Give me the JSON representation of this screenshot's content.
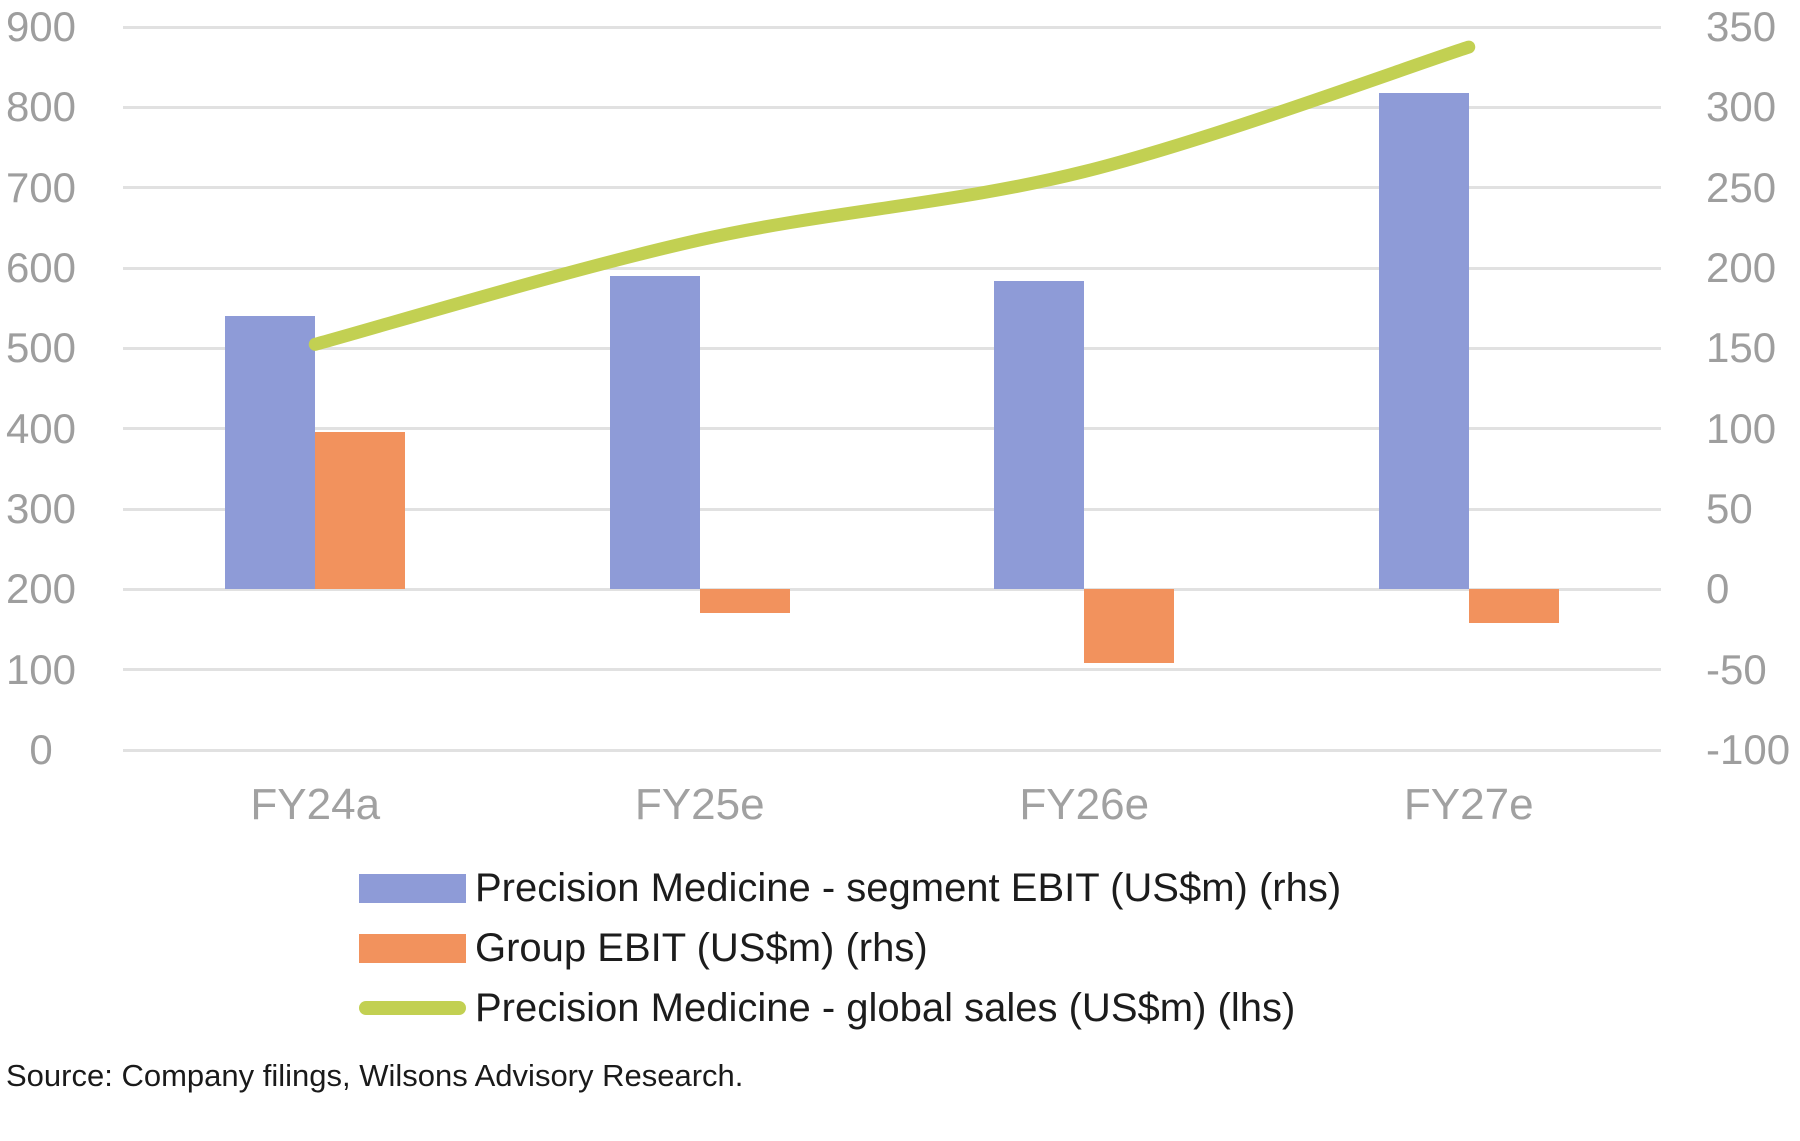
{
  "chart_data": {
    "type": "combo",
    "categories": [
      "FY24a",
      "FY25e",
      "FY26e",
      "FY27e"
    ],
    "series": [
      {
        "name": "Precision Medicine - segment EBIT (US$m) (rhs)",
        "type": "bar",
        "axis": "right",
        "color": "#8e9bd7",
        "values": [
          170,
          195,
          192,
          309
        ]
      },
      {
        "name": "Group EBIT (US$m) (rhs)",
        "type": "bar",
        "axis": "right",
        "color": "#f2925d",
        "values": [
          98,
          -15,
          -46,
          -21
        ]
      },
      {
        "name": "Precision Medicine - global sales (US$m) (lhs)",
        "type": "line",
        "axis": "left",
        "color": "#c2d052",
        "values": [
          505,
          635,
          720,
          875
        ]
      }
    ],
    "left_axis": {
      "min": 0,
      "max": 900,
      "ticks": [
        900,
        800,
        700,
        600,
        500,
        400,
        300,
        200,
        100,
        0
      ]
    },
    "right_axis": {
      "min": -100,
      "max": 350,
      "ticks": [
        350,
        300,
        250,
        200,
        150,
        100,
        50,
        0,
        -50,
        -100
      ]
    },
    "grid": true,
    "legend_position": "bottom",
    "gridline_color": "#e1e1e1"
  },
  "source_note": "Source: Company filings, Wilsons Advisory Research."
}
